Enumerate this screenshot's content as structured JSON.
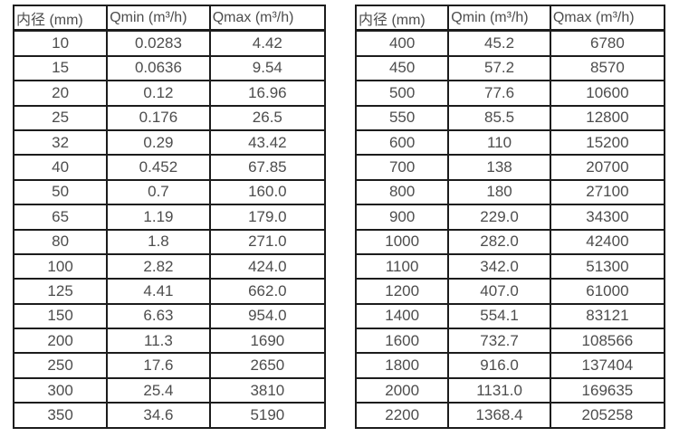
{
  "colors": {
    "background": "#ffffff",
    "border": "#1c1c1c",
    "text": "#4d4d4d"
  },
  "tables": [
    {
      "name": "flow-rate-table-small-diameters",
      "headers": [
        "内径 (mm)",
        "Qmin (m³/h)",
        "Qmax (m³/h)"
      ],
      "rows": [
        [
          "10",
          "0.0283",
          "4.42"
        ],
        [
          "15",
          "0.0636",
          "9.54"
        ],
        [
          "20",
          "0.12",
          "16.96"
        ],
        [
          "25",
          "0.176",
          "26.5"
        ],
        [
          "32",
          "0.29",
          "43.42"
        ],
        [
          "40",
          "0.452",
          "67.85"
        ],
        [
          "50",
          "0.7",
          "160.0"
        ],
        [
          "65",
          "1.19",
          "179.0"
        ],
        [
          "80",
          "1.8",
          "271.0"
        ],
        [
          "100",
          "2.82",
          "424.0"
        ],
        [
          "125",
          "4.41",
          "662.0"
        ],
        [
          "150",
          "6.63",
          "954.0"
        ],
        [
          "200",
          "11.3",
          "1690"
        ],
        [
          "250",
          "17.6",
          "2650"
        ],
        [
          "300",
          "25.4",
          "3810"
        ],
        [
          "350",
          "34.6",
          "5190"
        ]
      ]
    },
    {
      "name": "flow-rate-table-large-diameters",
      "headers": [
        "内径 (mm)",
        "Qmin (m³/h)",
        "Qmax (m³/h)"
      ],
      "rows": [
        [
          "400",
          "45.2",
          "6780"
        ],
        [
          "450",
          "57.2",
          "8570"
        ],
        [
          "500",
          "77.6",
          "10600"
        ],
        [
          "550",
          "85.5",
          "12800"
        ],
        [
          "600",
          "110",
          "15200"
        ],
        [
          "700",
          "138",
          "20700"
        ],
        [
          "800",
          "180",
          "27100"
        ],
        [
          "900",
          "229.0",
          "34300"
        ],
        [
          "1000",
          "282.0",
          "42400"
        ],
        [
          "1100",
          "342.0",
          "51300"
        ],
        [
          "1200",
          "407.0",
          "61000"
        ],
        [
          "1400",
          "554.1",
          "83121"
        ],
        [
          "1600",
          "732.7",
          "108566"
        ],
        [
          "1800",
          "916.0",
          "137404"
        ],
        [
          "2000",
          "1131.0",
          "169635"
        ],
        [
          "2200",
          "1368.4",
          "205258"
        ]
      ]
    }
  ]
}
